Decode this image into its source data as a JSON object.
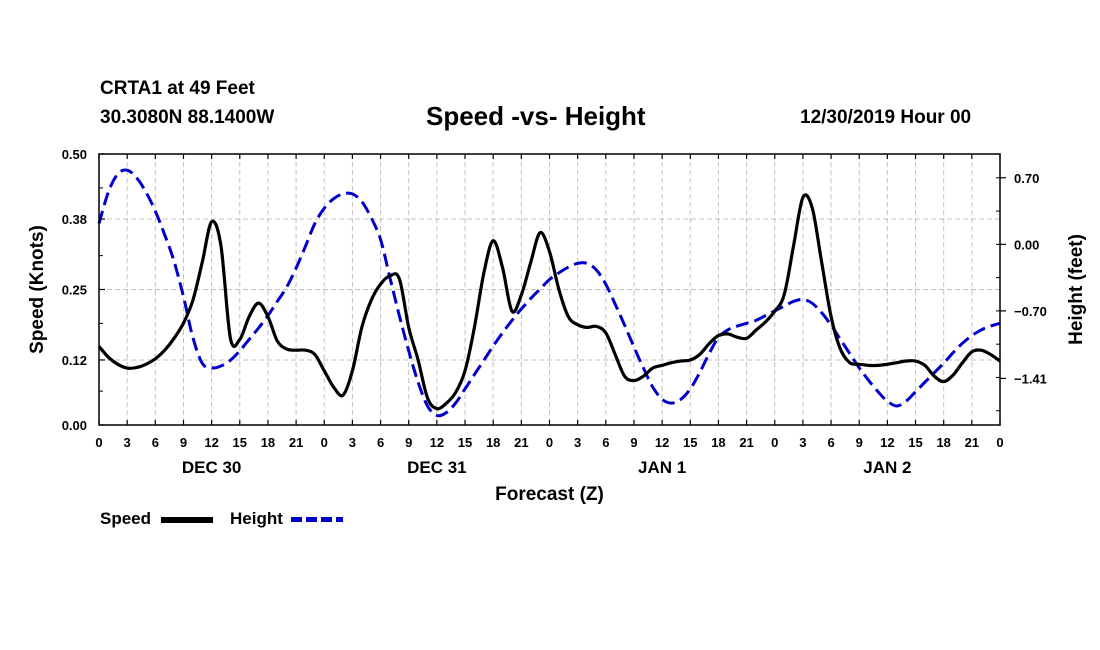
{
  "station": {
    "name": "CRTA1 at 49 Feet",
    "coords": "30.3080N 88.1400W"
  },
  "title": "Speed -vs- Height",
  "date_label": "12/30/2019 Hour 00",
  "legend": {
    "speed": "Speed",
    "height": "Height"
  },
  "colors": {
    "speed": "#000000",
    "height": "#0000cc",
    "grid": "#c0c0c0"
  },
  "chart_data": {
    "type": "line",
    "title": "Speed -vs- Height",
    "xlabel": "Forecast (Z)",
    "ylabel": "Speed (Knots)",
    "y2label": "Height (feet)",
    "xlim": [
      0,
      96
    ],
    "ylim": [
      0,
      0.5
    ],
    "y2lim": [
      -1.9,
      0.95
    ],
    "grid": true,
    "x_ticks": [
      0,
      3,
      6,
      9,
      12,
      15,
      18,
      21,
      24,
      27,
      30,
      33,
      36,
      39,
      42,
      45,
      48,
      51,
      54,
      57,
      60,
      63,
      66,
      69,
      72,
      75,
      78,
      81,
      84,
      87,
      90,
      93,
      96
    ],
    "x_tick_labels": [
      "0",
      "3",
      "6",
      "9",
      "12",
      "15",
      "18",
      "21",
      "0",
      "3",
      "6",
      "9",
      "12",
      "15",
      "18",
      "21",
      "0",
      "3",
      "6",
      "9",
      "12",
      "15",
      "18",
      "21",
      "0",
      "3",
      "6",
      "9",
      "12",
      "15",
      "18",
      "21",
      "0"
    ],
    "day_labels": [
      {
        "x": 12,
        "label": "DEC 30"
      },
      {
        "x": 36,
        "label": "DEC 31"
      },
      {
        "x": 60,
        "label": "JAN 1"
      },
      {
        "x": 84,
        "label": "JAN 2"
      }
    ],
    "y_ticks": [
      0.0,
      0.12,
      0.25,
      0.38,
      0.5
    ],
    "y_tick_labels": [
      "0.00",
      "0.12",
      "0.25",
      "0.38",
      "0.50"
    ],
    "y2_ticks": [
      0.7,
      0.0,
      -0.7,
      -1.41
    ],
    "y2_tick_labels": [
      "0.70",
      "0.00",
      "−0.70",
      "−1.41"
    ],
    "series": [
      {
        "name": "Speed",
        "axis": "left",
        "x": [
          0,
          1,
          2,
          3,
          4,
          5,
          6,
          7,
          8,
          9,
          10,
          11,
          12,
          13,
          14,
          15,
          16,
          17,
          18,
          19,
          20,
          21,
          22,
          23,
          24,
          25,
          26,
          27,
          28,
          29,
          30,
          31,
          32,
          33,
          34,
          35,
          36,
          37,
          38,
          39,
          40,
          41,
          42,
          43,
          44,
          45,
          46,
          47,
          48,
          49,
          50,
          51,
          52,
          53,
          54,
          55,
          56,
          57,
          58,
          59,
          60,
          61,
          62,
          63,
          64,
          65,
          66,
          67,
          68,
          69,
          70,
          71,
          72,
          73,
          74,
          75,
          76,
          77,
          78,
          79,
          80,
          81,
          82,
          83,
          84,
          85,
          86,
          87,
          88,
          89,
          90,
          91,
          92,
          93,
          94,
          95,
          96
        ],
        "values": [
          0.145,
          0.125,
          0.112,
          0.105,
          0.106,
          0.112,
          0.122,
          0.138,
          0.16,
          0.188,
          0.23,
          0.3,
          0.375,
          0.33,
          0.16,
          0.158,
          0.2,
          0.225,
          0.2,
          0.155,
          0.14,
          0.138,
          0.138,
          0.13,
          0.1,
          0.07,
          0.055,
          0.1,
          0.18,
          0.23,
          0.26,
          0.275,
          0.27,
          0.18,
          0.12,
          0.05,
          0.03,
          0.04,
          0.06,
          0.1,
          0.18,
          0.28,
          0.34,
          0.29,
          0.21,
          0.24,
          0.3,
          0.355,
          0.32,
          0.25,
          0.2,
          0.185,
          0.18,
          0.182,
          0.17,
          0.13,
          0.09,
          0.082,
          0.09,
          0.105,
          0.11,
          0.115,
          0.118,
          0.12,
          0.13,
          0.15,
          0.165,
          0.168,
          0.162,
          0.16,
          0.175,
          0.19,
          0.21,
          0.24,
          0.33,
          0.42,
          0.4,
          0.3,
          0.2,
          0.14,
          0.115,
          0.112,
          0.11,
          0.11,
          0.112,
          0.115,
          0.118,
          0.118,
          0.11,
          0.09,
          0.08,
          0.092,
          0.115,
          0.135,
          0.138,
          0.13,
          0.118
        ]
      },
      {
        "name": "Height",
        "axis": "right",
        "x": [
          0,
          1,
          2,
          3,
          4,
          5,
          6,
          7,
          8,
          9,
          10,
          11,
          12,
          13,
          14,
          15,
          16,
          17,
          18,
          19,
          20,
          21,
          22,
          23,
          24,
          25,
          26,
          27,
          28,
          29,
          30,
          31,
          32,
          33,
          34,
          35,
          36,
          37,
          38,
          39,
          40,
          41,
          42,
          43,
          44,
          45,
          46,
          47,
          48,
          49,
          50,
          51,
          52,
          53,
          54,
          55,
          56,
          57,
          58,
          59,
          60,
          61,
          62,
          63,
          64,
          65,
          66,
          67,
          68,
          69,
          70,
          71,
          72,
          73,
          74,
          75,
          76,
          77,
          78,
          79,
          80,
          81,
          82,
          83,
          84,
          85,
          86,
          87,
          88,
          89,
          90,
          91,
          92,
          93,
          94,
          95,
          96
        ],
        "values": [
          0.22,
          0.55,
          0.74,
          0.78,
          0.7,
          0.55,
          0.35,
          0.1,
          -0.18,
          -0.55,
          -0.98,
          -1.25,
          -1.3,
          -1.28,
          -1.22,
          -1.12,
          -1.0,
          -0.88,
          -0.75,
          -0.6,
          -0.45,
          -0.25,
          -0.02,
          0.22,
          0.38,
          0.48,
          0.53,
          0.53,
          0.45,
          0.28,
          0.05,
          -0.35,
          -0.75,
          -1.12,
          -1.45,
          -1.7,
          -1.8,
          -1.77,
          -1.67,
          -1.52,
          -1.37,
          -1.22,
          -1.07,
          -0.93,
          -0.8,
          -0.68,
          -0.57,
          -0.47,
          -0.37,
          -0.3,
          -0.24,
          -0.2,
          -0.2,
          -0.27,
          -0.42,
          -0.63,
          -0.85,
          -1.08,
          -1.3,
          -1.5,
          -1.63,
          -1.67,
          -1.63,
          -1.52,
          -1.35,
          -1.15,
          -0.98,
          -0.9,
          -0.86,
          -0.83,
          -0.8,
          -0.75,
          -0.7,
          -0.65,
          -0.6,
          -0.58,
          -0.62,
          -0.72,
          -0.85,
          -1.0,
          -1.15,
          -1.3,
          -1.43,
          -1.55,
          -1.65,
          -1.7,
          -1.65,
          -1.55,
          -1.45,
          -1.35,
          -1.25,
          -1.14,
          -1.04,
          -0.96,
          -0.9,
          -0.86,
          -0.83
        ]
      }
    ]
  }
}
